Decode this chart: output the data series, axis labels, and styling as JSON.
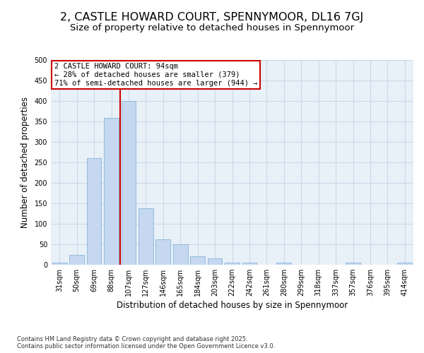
{
  "title_line1": "2, CASTLE HOWARD COURT, SPENNYMOOR, DL16 7GJ",
  "title_line2": "Size of property relative to detached houses in Spennymoor",
  "xlabel": "Distribution of detached houses by size in Spennymoor",
  "ylabel": "Number of detached properties",
  "categories": [
    "31sqm",
    "50sqm",
    "69sqm",
    "88sqm",
    "107sqm",
    "127sqm",
    "146sqm",
    "165sqm",
    "184sqm",
    "203sqm",
    "222sqm",
    "242sqm",
    "261sqm",
    "280sqm",
    "299sqm",
    "318sqm",
    "337sqm",
    "357sqm",
    "376sqm",
    "395sqm",
    "414sqm"
  ],
  "values": [
    5,
    25,
    260,
    358,
    400,
    138,
    62,
    50,
    20,
    15,
    5,
    5,
    0,
    5,
    0,
    0,
    0,
    5,
    0,
    0,
    5
  ],
  "bar_color": "#c5d8ef",
  "bar_edge_color": "#7aadd4",
  "grid_color": "#c8d8e8",
  "bg_color": "#e8f0f8",
  "annotation_text": "2 CASTLE HOWARD COURT: 94sqm\n← 28% of detached houses are smaller (379)\n71% of semi-detached houses are larger (944) →",
  "annotation_box_color": "#cc0000",
  "vline_color": "#cc0000",
  "ylim": [
    0,
    500
  ],
  "yticks": [
    0,
    50,
    100,
    150,
    200,
    250,
    300,
    350,
    400,
    450,
    500
  ],
  "footer_text": "Contains HM Land Registry data © Crown copyright and database right 2025.\nContains public sector information licensed under the Open Government Licence v3.0.",
  "title_fontsize": 11.5,
  "subtitle_fontsize": 9.5,
  "axis_label_fontsize": 8.5,
  "tick_fontsize": 7,
  "annotation_fontsize": 7.5,
  "footer_fontsize": 6
}
